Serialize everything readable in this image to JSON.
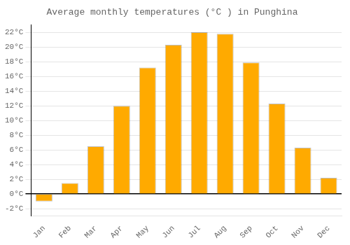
{
  "chart_data": {
    "type": "bar",
    "title": "Average monthly temperatures (°C ) in Punghina",
    "categories": [
      "Jan",
      "Feb",
      "Mar",
      "Apr",
      "May",
      "Jun",
      "Jul",
      "Aug",
      "Sep",
      "Oct",
      "Nov",
      "Dec"
    ],
    "values": [
      -1.0,
      1.5,
      6.5,
      12.0,
      17.2,
      20.3,
      22.0,
      21.8,
      17.9,
      12.3,
      6.3,
      2.2
    ],
    "color": "#FFAA00",
    "ylim": [
      -3,
      23
    ],
    "yticks": [
      {
        "value": -2,
        "label": "-2°C"
      },
      {
        "value": 0,
        "label": "0°C"
      },
      {
        "value": 2,
        "label": "2°C"
      },
      {
        "value": 4,
        "label": "4°C"
      },
      {
        "value": 6,
        "label": "6°C"
      },
      {
        "value": 8,
        "label": "8°C"
      },
      {
        "value": 10,
        "label": "10°C"
      },
      {
        "value": 12,
        "label": "12°C"
      },
      {
        "value": 14,
        "label": "14°C"
      },
      {
        "value": 16,
        "label": "16°C"
      },
      {
        "value": 18,
        "label": "18°C"
      },
      {
        "value": 20,
        "label": "20°C"
      },
      {
        "value": 22,
        "label": "22°C"
      }
    ],
    "grid": "y"
  }
}
